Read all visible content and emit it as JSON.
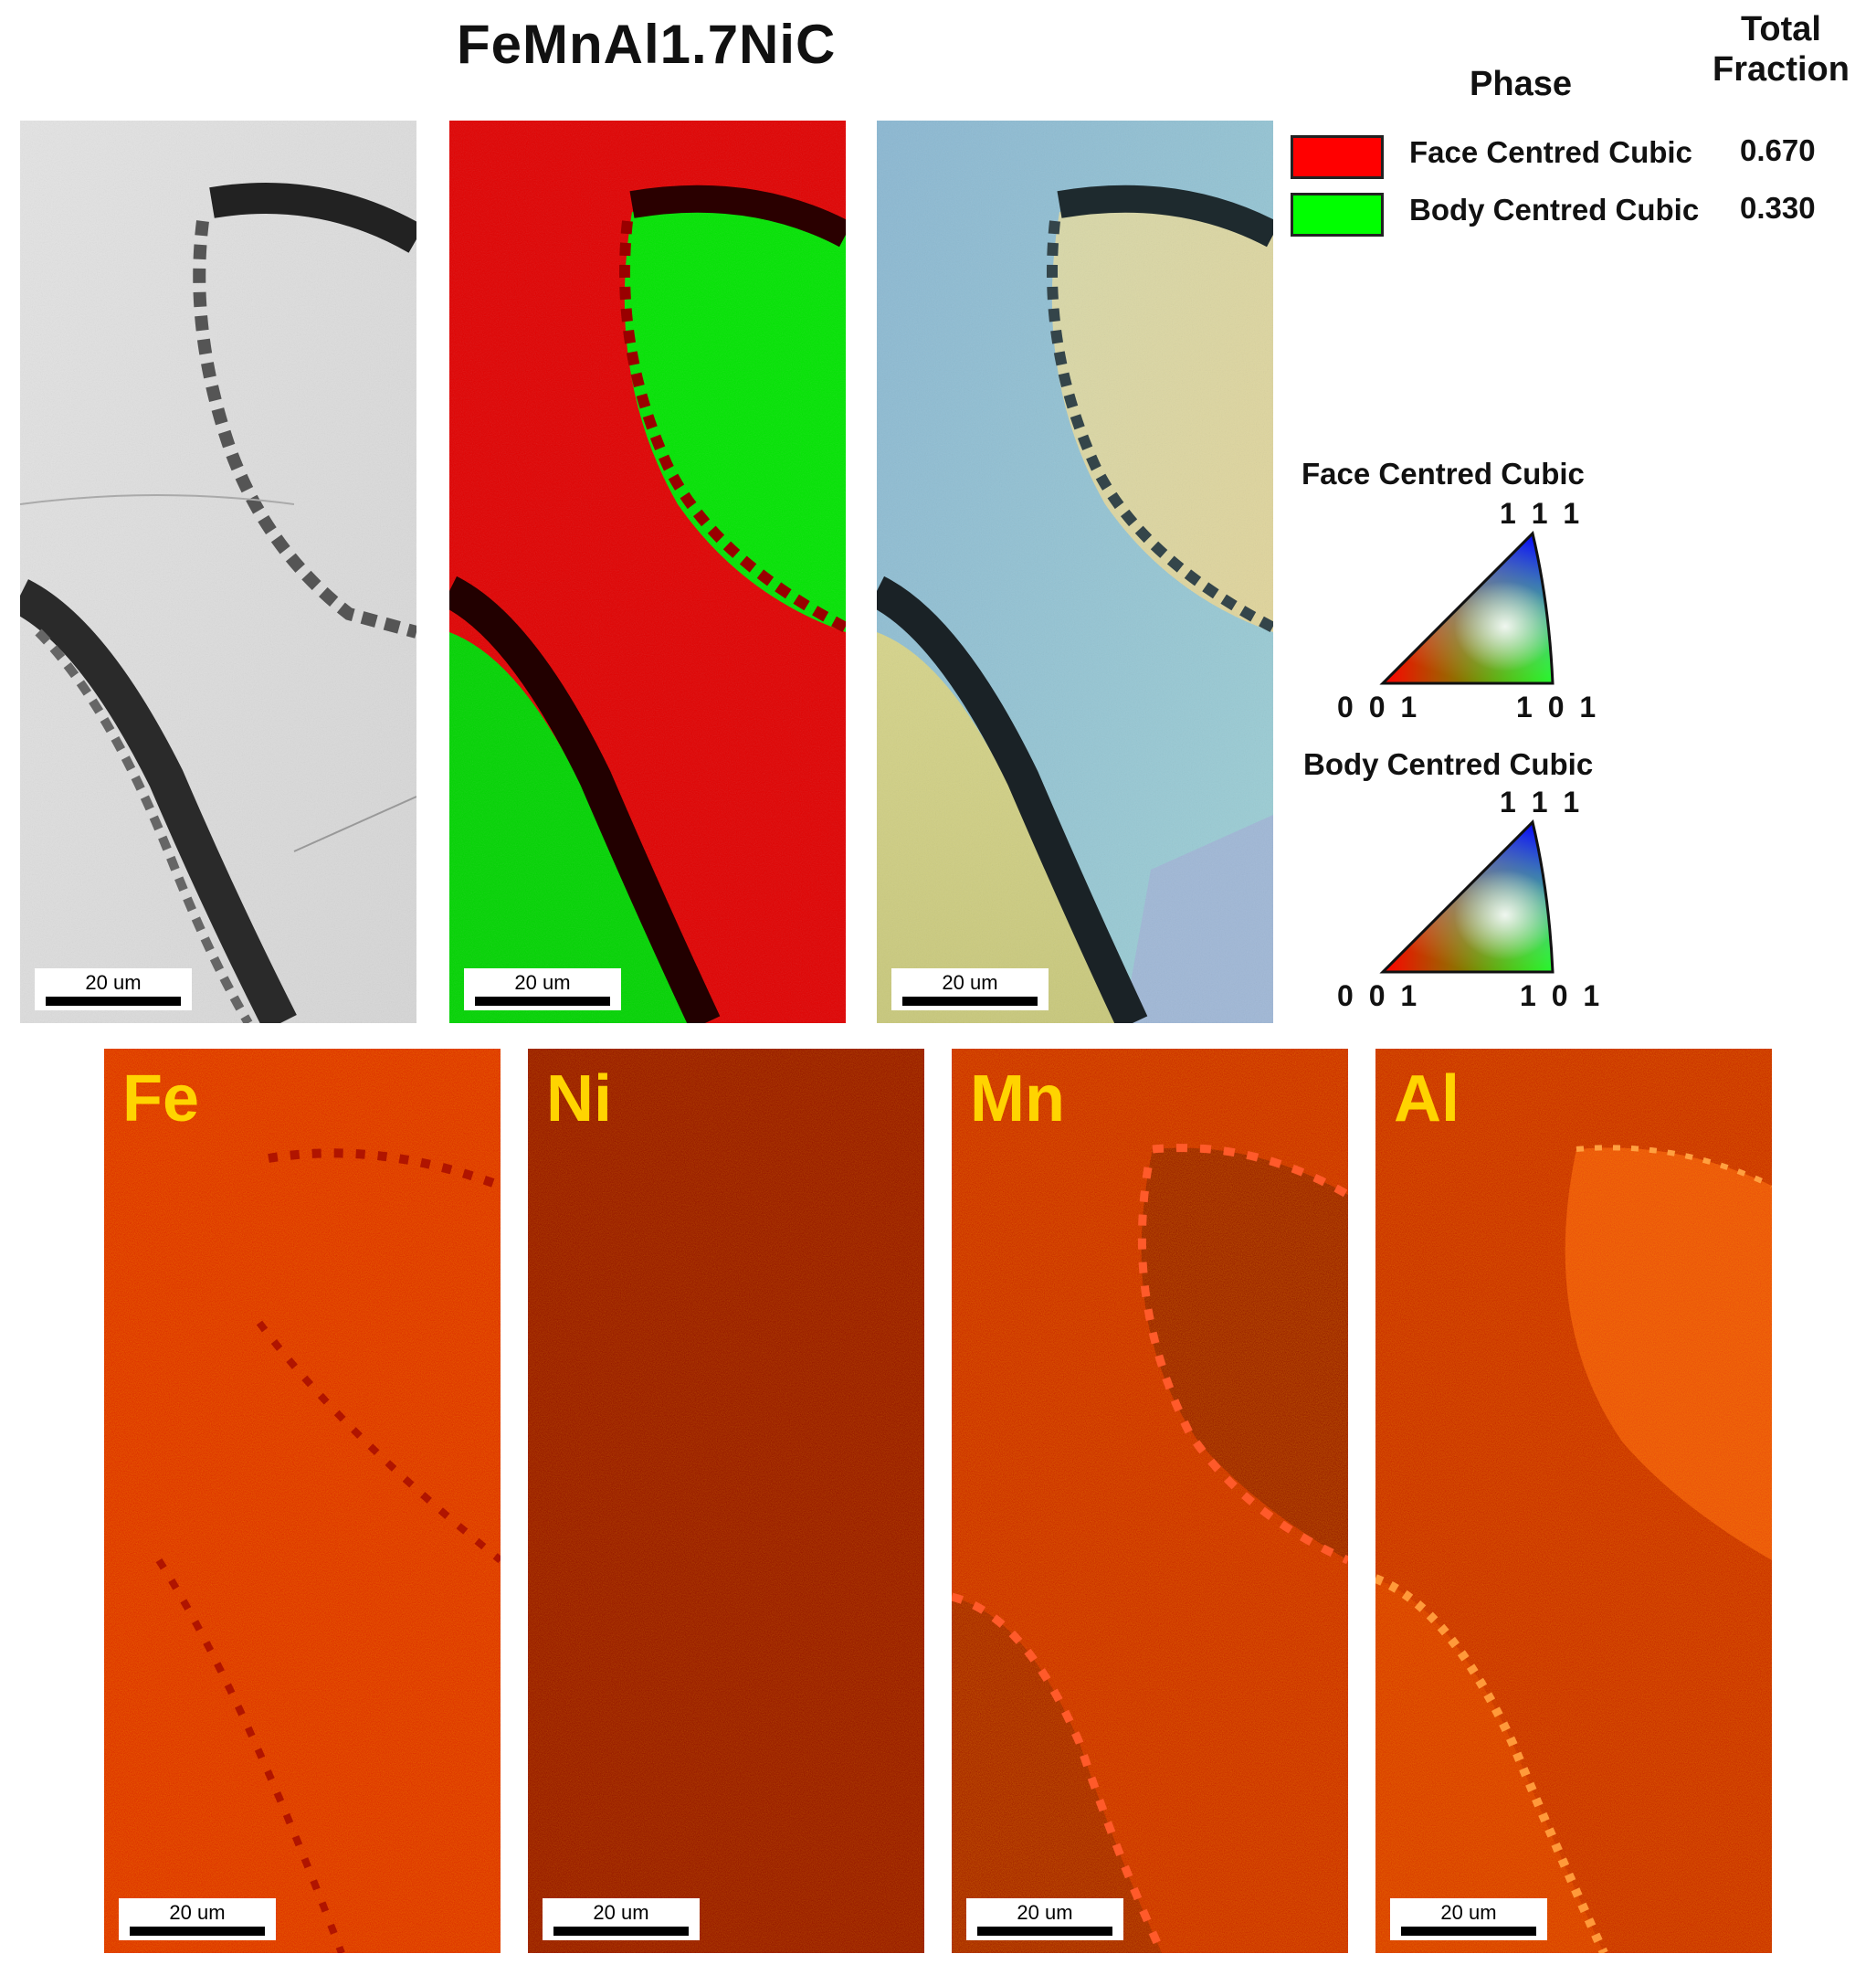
{
  "figure": {
    "title": "FeMnAl1.7NiC"
  },
  "phase_table": {
    "phase_header": "Phase",
    "fraction_header_line1": "Total",
    "fraction_header_line2": "Fraction",
    "rows": [
      {
        "name": "Face Centred Cubic",
        "fraction": "0.670",
        "color": "#ff0000"
      },
      {
        "name": "Body Centred Cubic",
        "fraction": "0.330",
        "color": "#00ff00"
      }
    ]
  },
  "ipf_keys": [
    {
      "title": "Face Centred Cubic",
      "top": "1 1 1",
      "left": "0 0 1",
      "right": "1 0 1"
    },
    {
      "title": "Body Centred Cubic",
      "top": "1 1 1",
      "left": "0 0 1",
      "right": "1 0 1"
    }
  ],
  "top_panels": [
    {
      "kind": "band-contrast",
      "scale": "20 um"
    },
    {
      "kind": "phase-map",
      "scale": "20 um"
    },
    {
      "kind": "ipf-map",
      "scale": "20 um"
    }
  ],
  "eds_maps": [
    {
      "element": "Fe",
      "scale": "20 um"
    },
    {
      "element": "Ni",
      "scale": "20 um"
    },
    {
      "element": "Mn",
      "scale": "20 um"
    },
    {
      "element": "Al",
      "scale": "20 um"
    }
  ],
  "colors": {
    "fcc": "#ff0000",
    "bcc": "#00ff00",
    "eds_base": "#d01a00",
    "label_yellow": "#ffd400"
  }
}
